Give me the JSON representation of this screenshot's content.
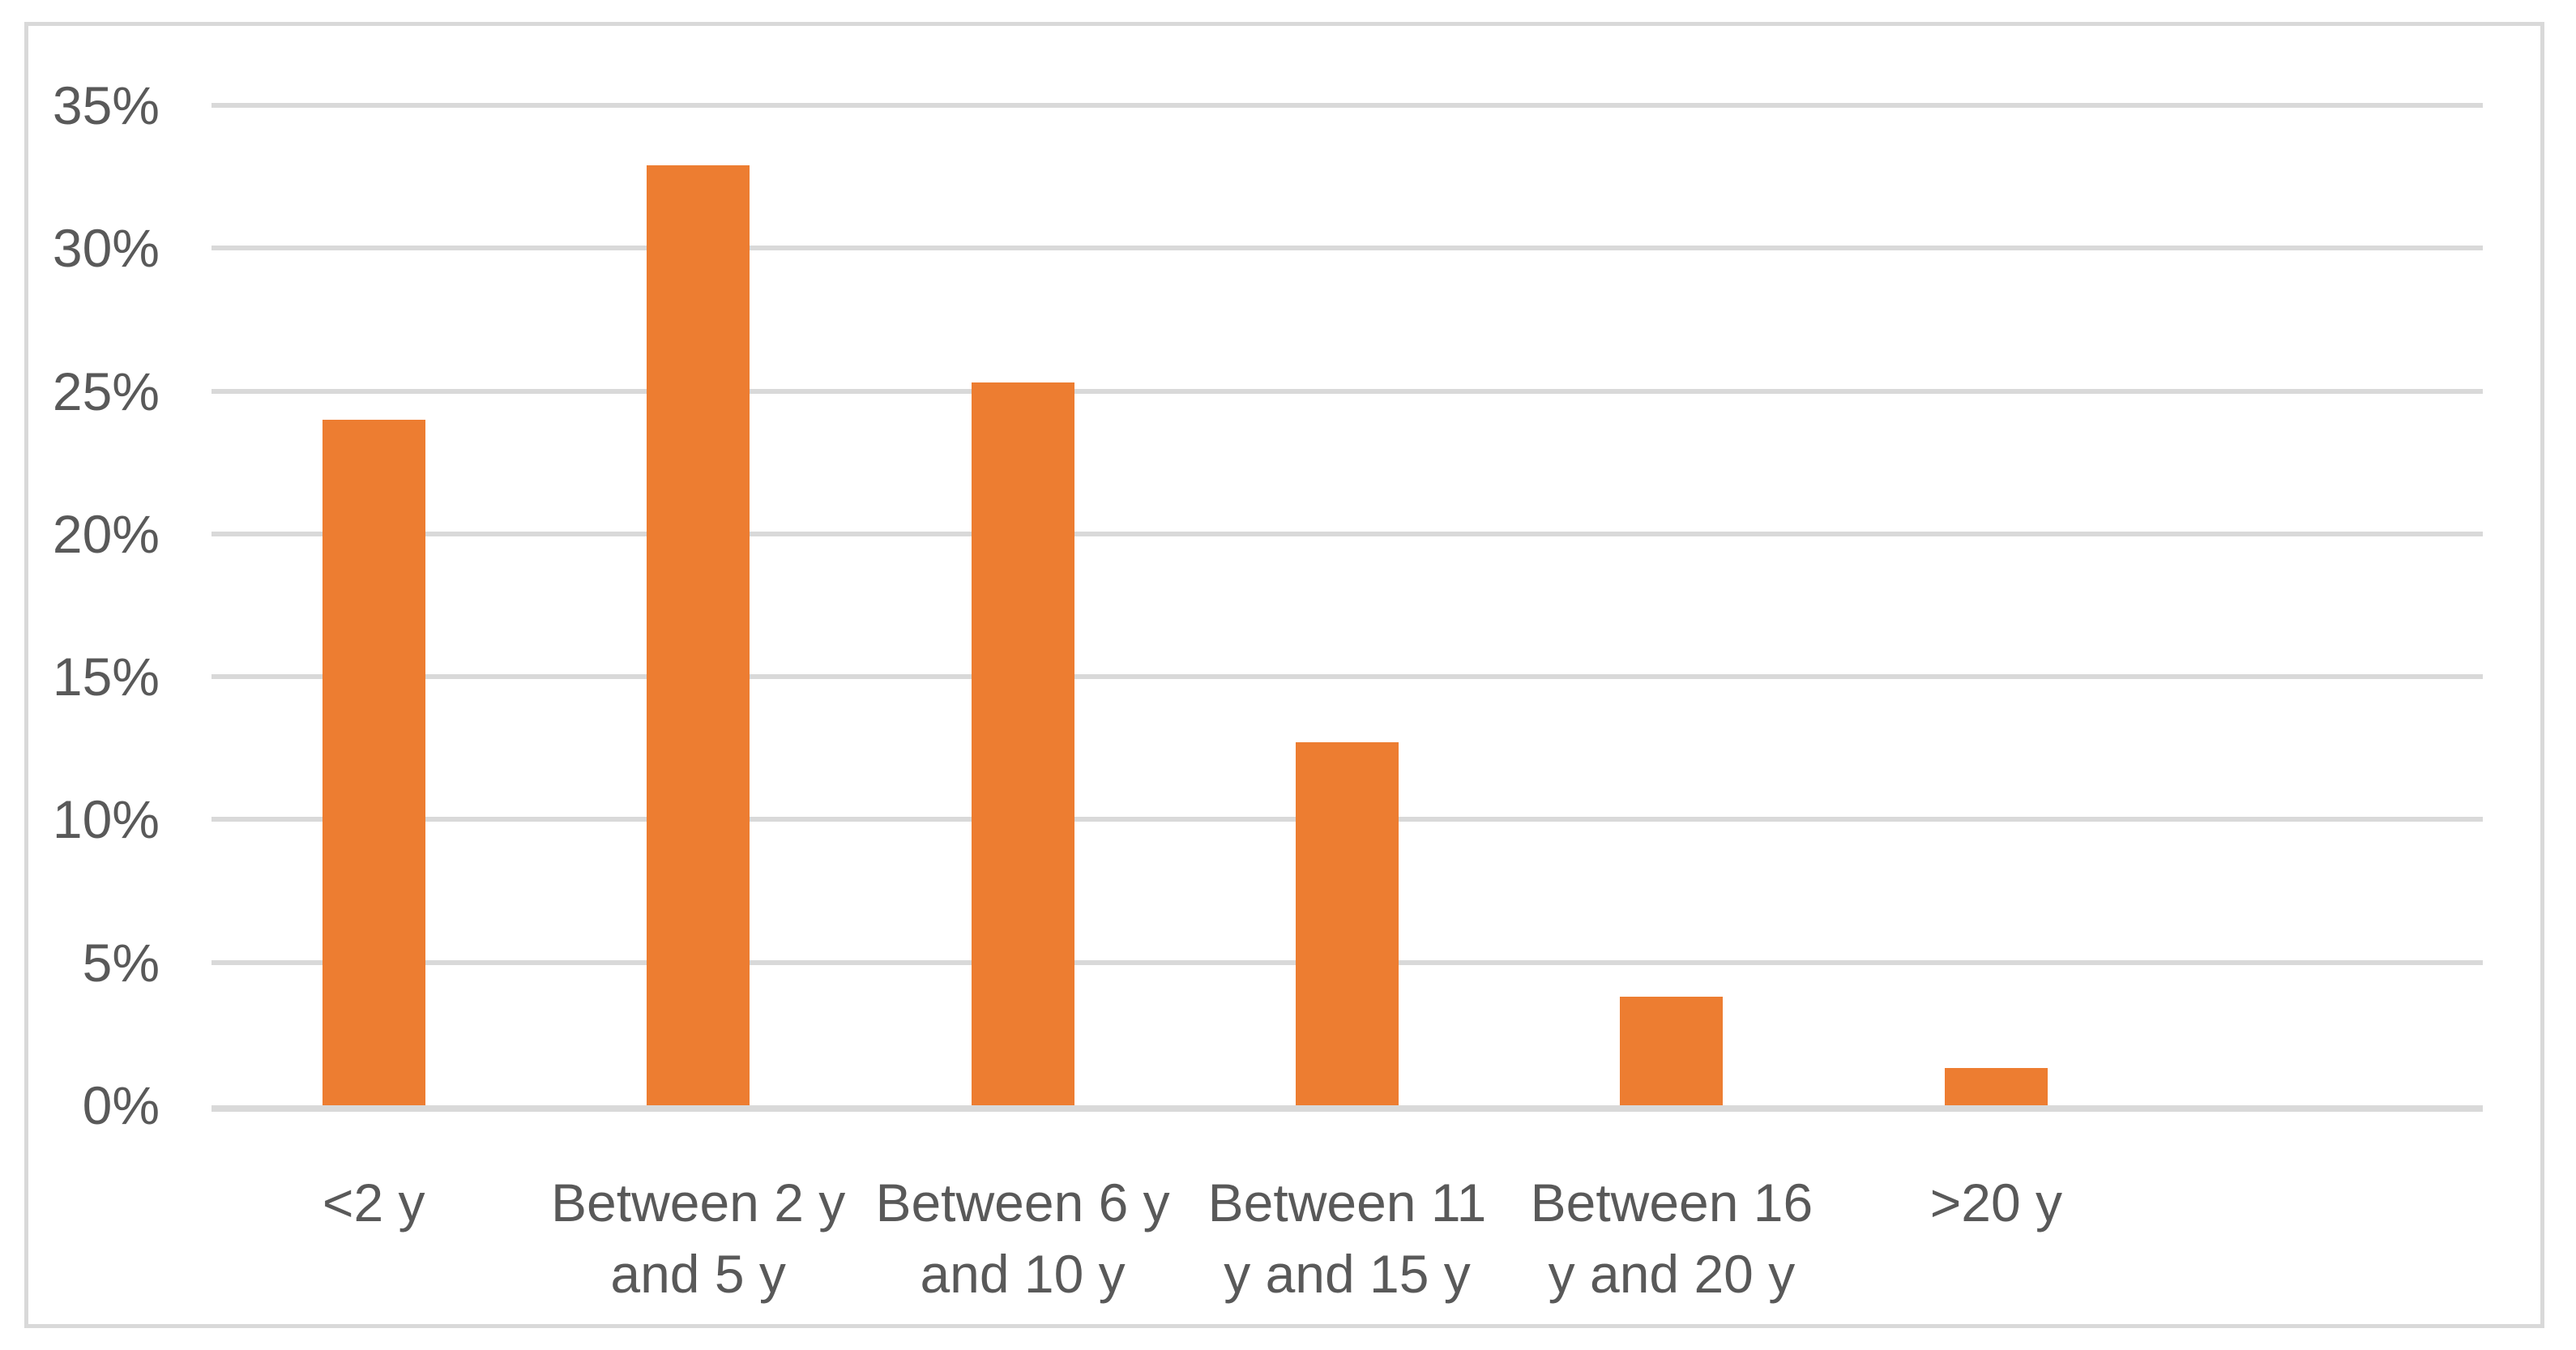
{
  "chart_data": {
    "type": "bar",
    "title": "",
    "xlabel": "",
    "ylabel": "",
    "categories": [
      "<2 y",
      "Between 2 y and 5 y",
      "Between 6 y and 10 y",
      "Between 11 y and 15 y",
      "Between 16 y and 20 y",
      ">20 y"
    ],
    "category_label_lines": [
      [
        "<2 y"
      ],
      [
        "Between 2 y",
        "and 5 y"
      ],
      [
        "Between 6 y",
        "and 10 y"
      ],
      [
        "Between 11",
        "y and 15 y"
      ],
      [
        "Between 16",
        "y and 20 y"
      ],
      [
        ">20 y"
      ]
    ],
    "values": [
      24.0,
      32.9,
      25.3,
      12.7,
      3.8,
      1.3
    ],
    "unit": "%",
    "ylim": [
      0,
      35
    ],
    "ytick_step": 5,
    "ytick_labels": [
      "0%",
      "5%",
      "10%",
      "15%",
      "20%",
      "25%",
      "30%",
      "35%"
    ],
    "grid": true,
    "legend": false,
    "colors": {
      "bar": "#ED7D31",
      "gridline": "#D9D9D9",
      "axis_line": "#D9D9D9",
      "tick_label": "#595959",
      "frame_border": "#D9D9D9",
      "background": "#FFFFFF"
    }
  }
}
